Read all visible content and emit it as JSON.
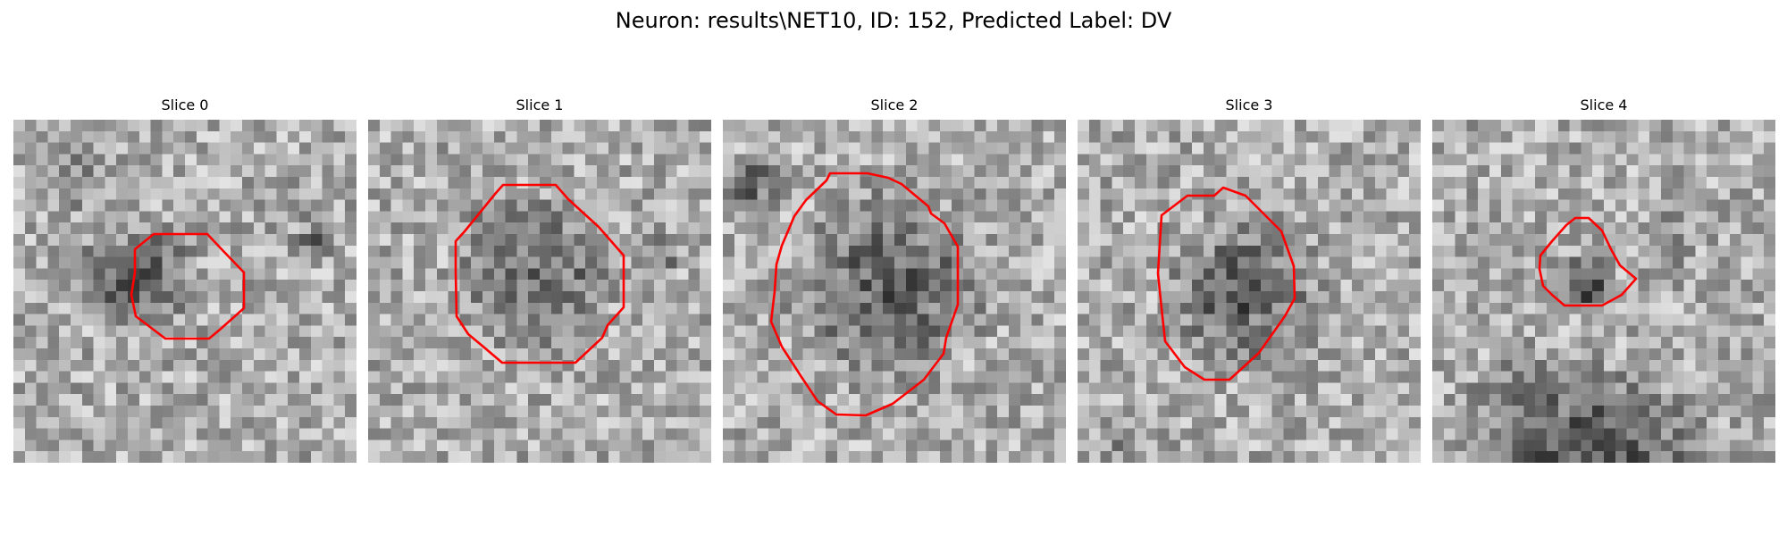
{
  "figure": {
    "title": "Neuron: results\\NET10, ID: 152, Predicted Label: DV",
    "contour_color": "#ff0000",
    "colormap": "gray"
  },
  "slices": [
    {
      "label": "Slice 0"
    },
    {
      "label": "Slice 1"
    },
    {
      "label": "Slice 2"
    },
    {
      "label": "Slice 3"
    },
    {
      "label": "Slice 4"
    }
  ]
}
